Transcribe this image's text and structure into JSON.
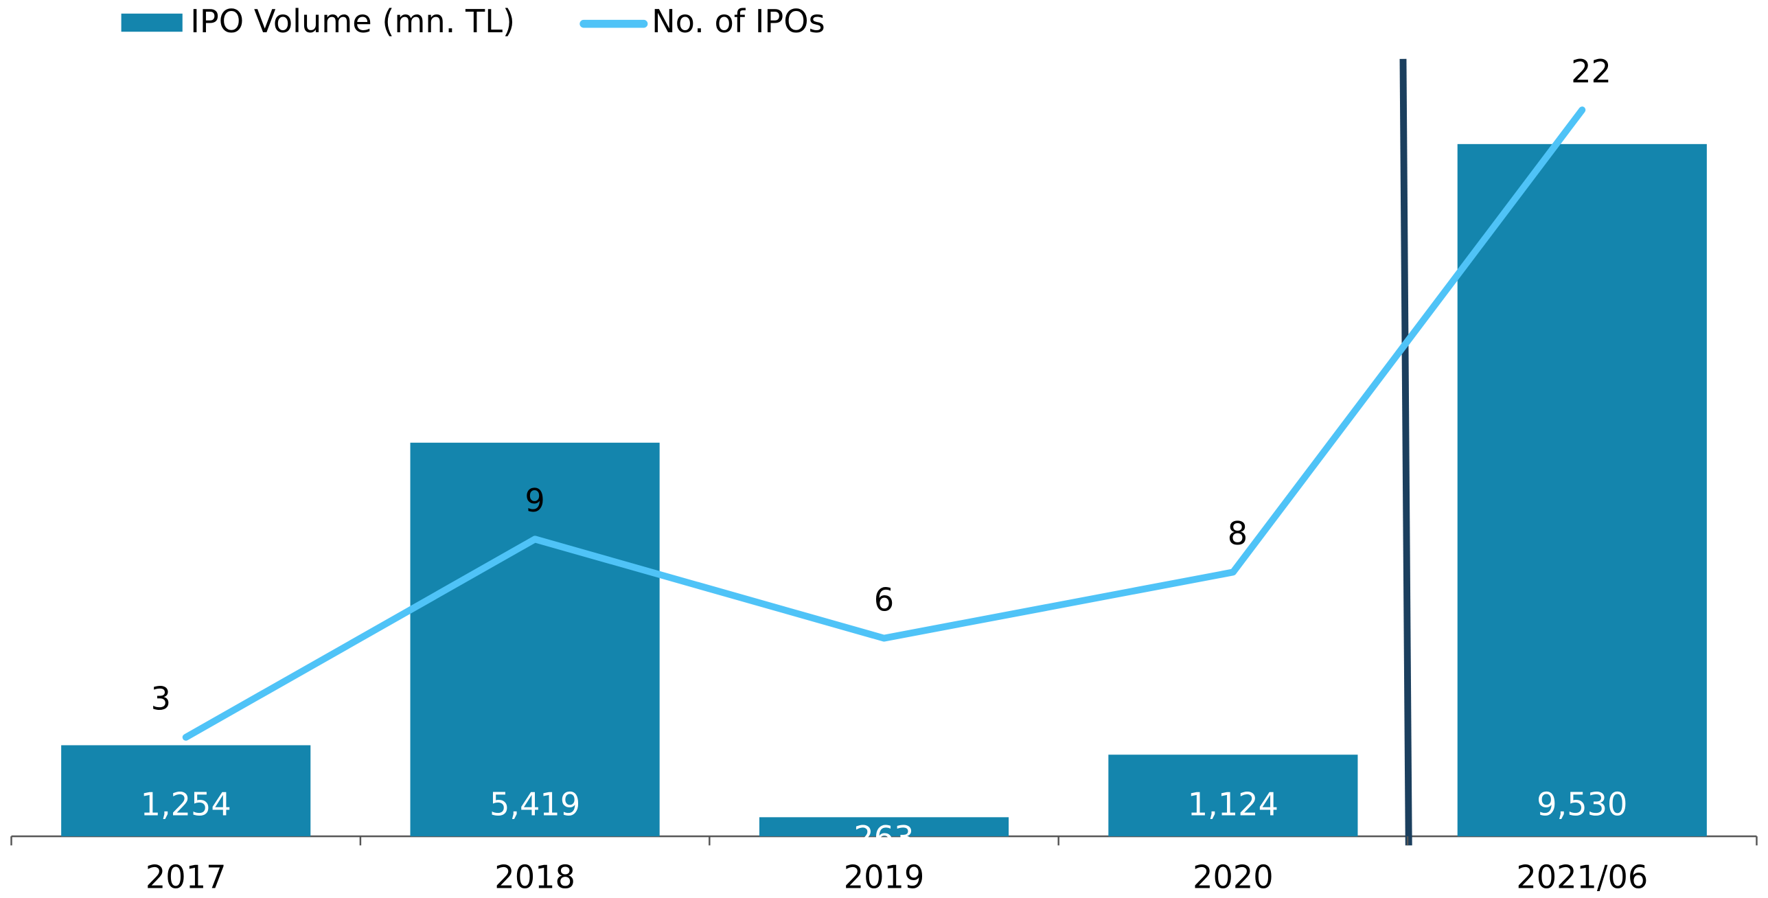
{
  "chart_data": {
    "type": "bar",
    "categories": [
      "2017",
      "2018",
      "2019",
      "2020",
      "2021/06"
    ],
    "series": [
      {
        "name": "IPO Volume (mn. TL)",
        "type": "bar",
        "color": "#1485ad",
        "values": [
          1254,
          5419,
          263,
          1124,
          9530
        ],
        "value_labels": [
          "1,254",
          "5,419",
          "263",
          "1,124",
          "9,530"
        ]
      },
      {
        "name": "No. of IPOs",
        "type": "line",
        "axis": "y2",
        "color": "#4fc3f7",
        "values": [
          3,
          9,
          6,
          8,
          22
        ]
      }
    ],
    "ylim": [
      0,
      10000
    ],
    "y2lim": [
      0,
      22
    ],
    "legend": "top-left"
  }
}
